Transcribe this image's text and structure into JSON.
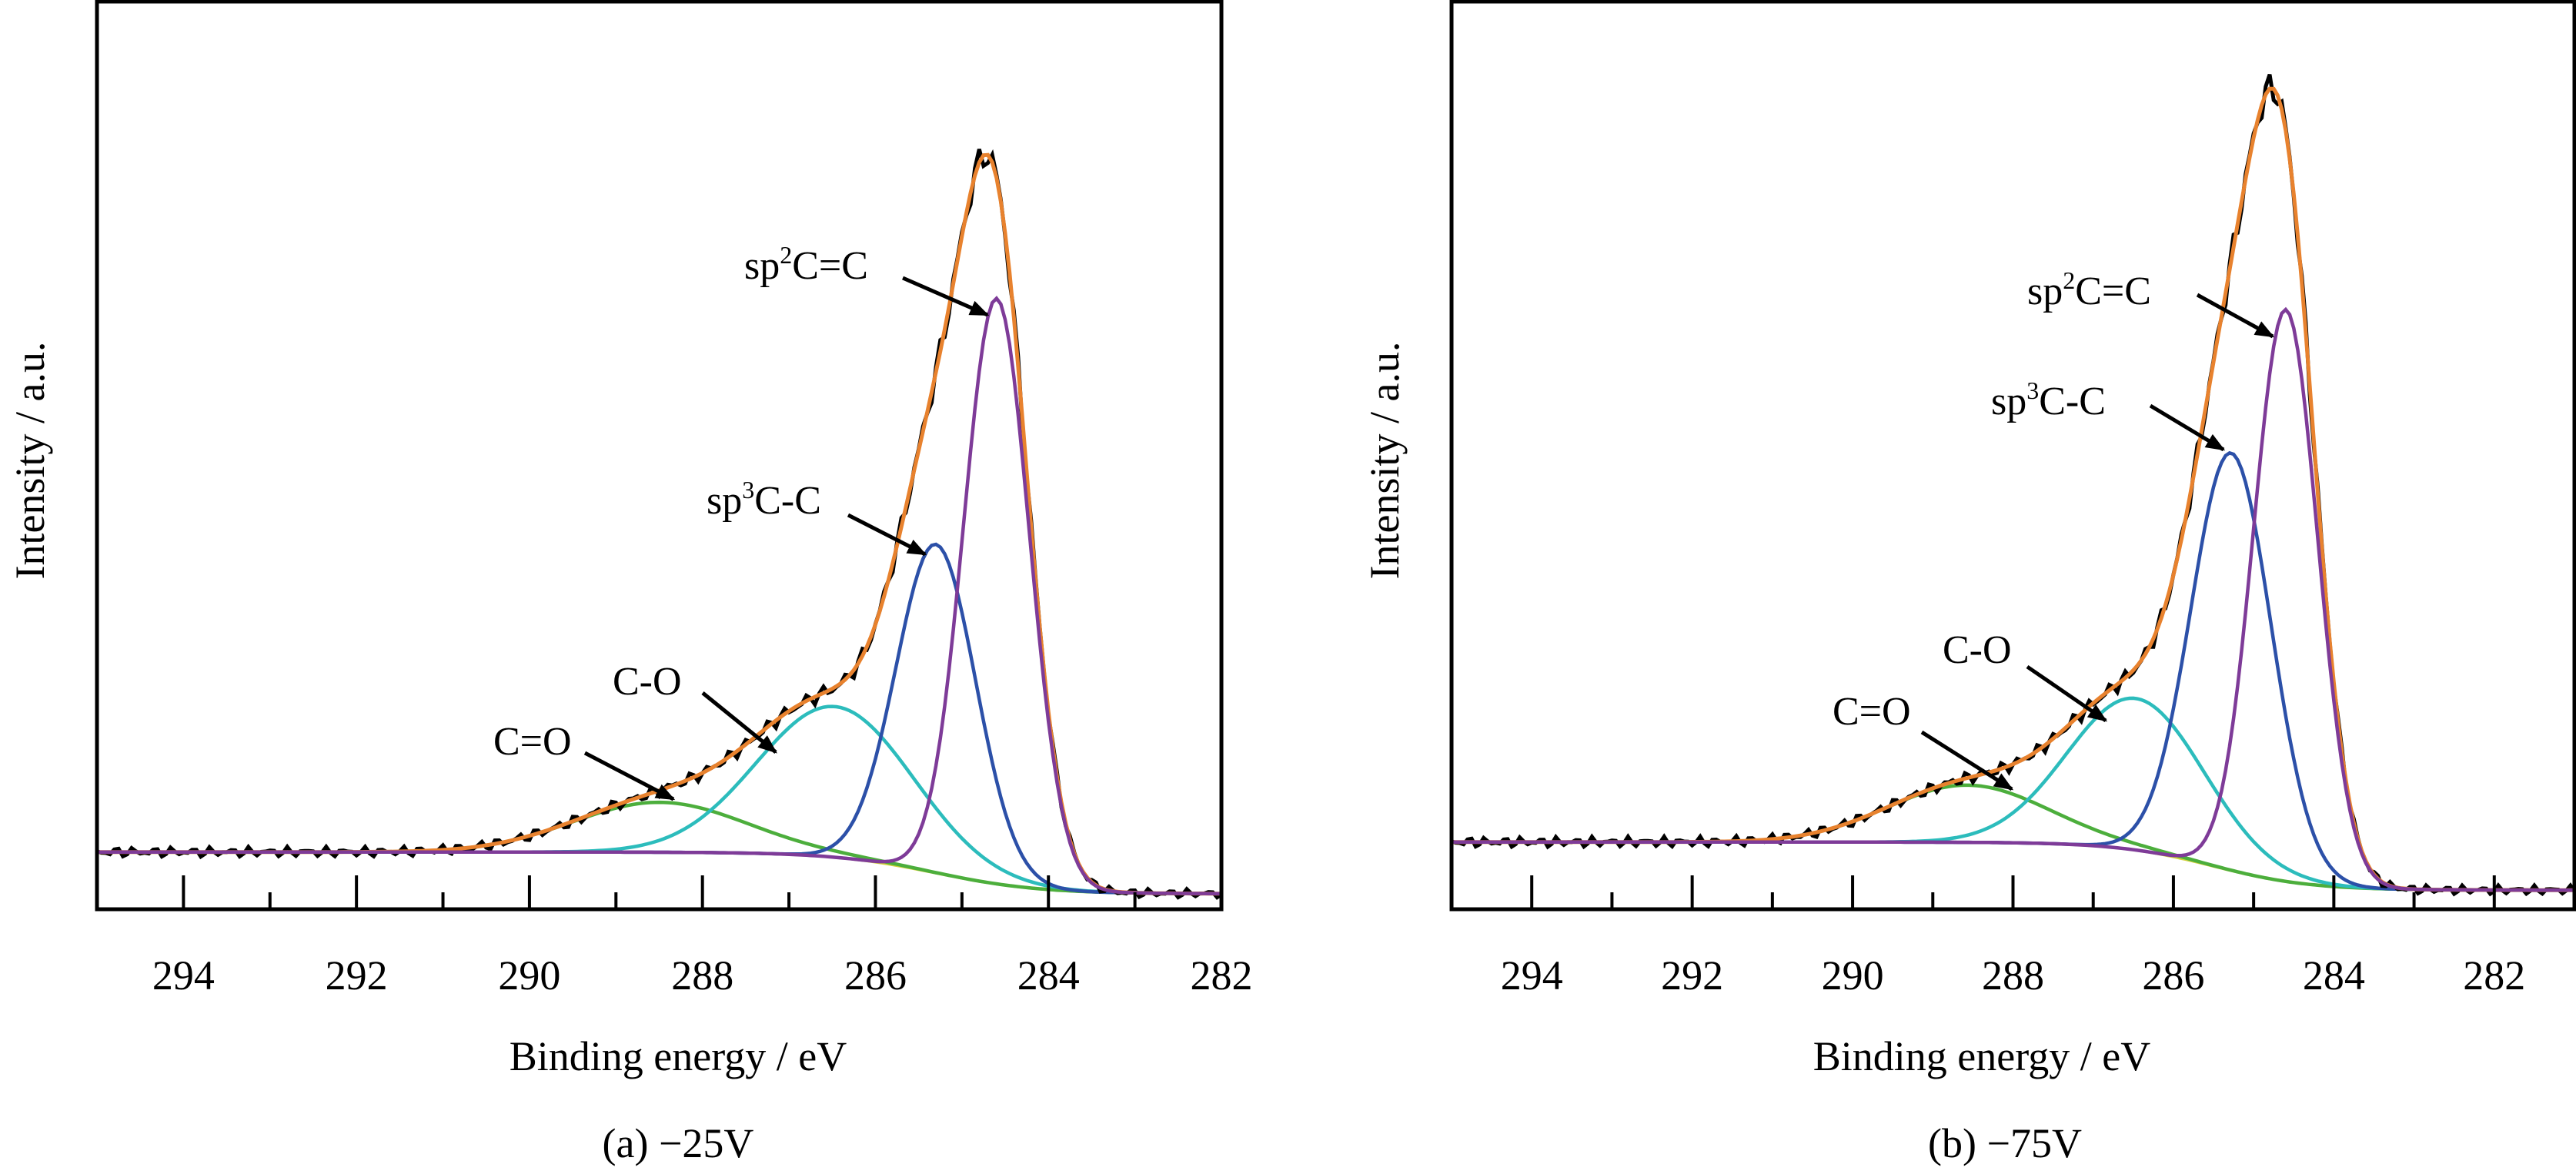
{
  "chart_data": [
    {
      "type": "line",
      "caption": "(a) −25V",
      "xlabel": "Binding energy / eV",
      "ylabel": "Intensity / a.u.",
      "xlim": [
        295,
        282
      ],
      "ylim": [
        0,
        100
      ],
      "xticks": [
        294,
        292,
        290,
        288,
        286,
        284,
        282
      ],
      "minor_xticks": [
        295,
        293,
        291,
        289,
        287,
        285,
        283
      ],
      "grid": false,
      "background": {
        "high": 6.3,
        "low": 1.7,
        "center": 285.3,
        "width": 0.6,
        "color": "#d2d23c"
      },
      "envelope_color": "#e8822e",
      "raw_color": "#000000",
      "peaks": [
        {
          "name": "C=O",
          "center": 288.5,
          "height": 5.5,
          "sigma": 1.0,
          "color": "#4cae3c"
        },
        {
          "name": "C-O",
          "center": 286.47,
          "height": 16.6,
          "sigma": 0.9,
          "color": "#2cbcbc"
        },
        {
          "name": "sp3C-C",
          "center": 285.3,
          "height": 36.2,
          "sigma": 0.46,
          "color": "#2c50a8"
        },
        {
          "name": "sp2C=C",
          "center": 284.6,
          "height": 64.5,
          "sigma": 0.38,
          "color": "#7e3b98"
        }
      ],
      "annotations": [
        {
          "pre": "sp",
          "sup": "2",
          "post": "C=C"
        },
        {
          "pre": "sp",
          "sup": "3",
          "post": "C-C"
        },
        {
          "pre": "C-O",
          "sup": "",
          "post": ""
        },
        {
          "pre": "C=O",
          "sup": "",
          "post": ""
        }
      ]
    },
    {
      "type": "line",
      "caption": "(b) −75V",
      "xlabel": "Binding energy / eV",
      "ylabel": "Intensity / a.u.",
      "xlim": [
        295,
        281
      ],
      "ylim": [
        0,
        100
      ],
      "xticks": [
        294,
        292,
        290,
        288,
        286,
        284,
        282
      ],
      "minor_xticks": [
        295,
        293,
        291,
        289,
        287,
        285,
        283,
        281
      ],
      "grid": false,
      "background": {
        "high": 7.4,
        "low": 2.1,
        "center": 285.5,
        "width": 0.6,
        "color": "#d2d23c"
      },
      "envelope_color": "#e8822e",
      "raw_color": "#000000",
      "peaks": [
        {
          "name": "C=O",
          "center": 288.57,
          "height": 6.3,
          "sigma": 1.0,
          "color": "#4cae3c"
        },
        {
          "name": "C-O",
          "center": 286.47,
          "height": 16.7,
          "sigma": 0.85,
          "color": "#2cbcbc"
        },
        {
          "name": "sp3C-C",
          "center": 285.28,
          "height": 46.0,
          "sigma": 0.5,
          "color": "#2c50a8"
        },
        {
          "name": "sp2C=C",
          "center": 284.6,
          "height": 63.0,
          "sigma": 0.4,
          "color": "#7e3b98"
        }
      ],
      "annotations": [
        {
          "pre": "sp",
          "sup": "2",
          "post": "C=C"
        },
        {
          "pre": "sp",
          "sup": "3",
          "post": "C-C"
        },
        {
          "pre": "C-O",
          "sup": "",
          "post": ""
        },
        {
          "pre": "C=O",
          "sup": "",
          "post": ""
        }
      ]
    }
  ]
}
